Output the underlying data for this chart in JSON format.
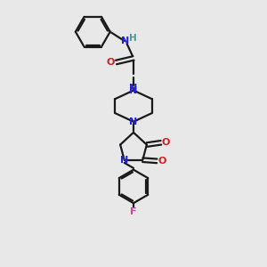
{
  "bg_color": "#e8e8e8",
  "bond_color": "#1a1a1a",
  "N_color": "#2222cc",
  "O_color": "#cc2222",
  "F_color": "#cc44aa",
  "H_color": "#449999",
  "lw": 1.6,
  "xlim": [
    0,
    10
  ],
  "ylim": [
    0,
    13
  ]
}
